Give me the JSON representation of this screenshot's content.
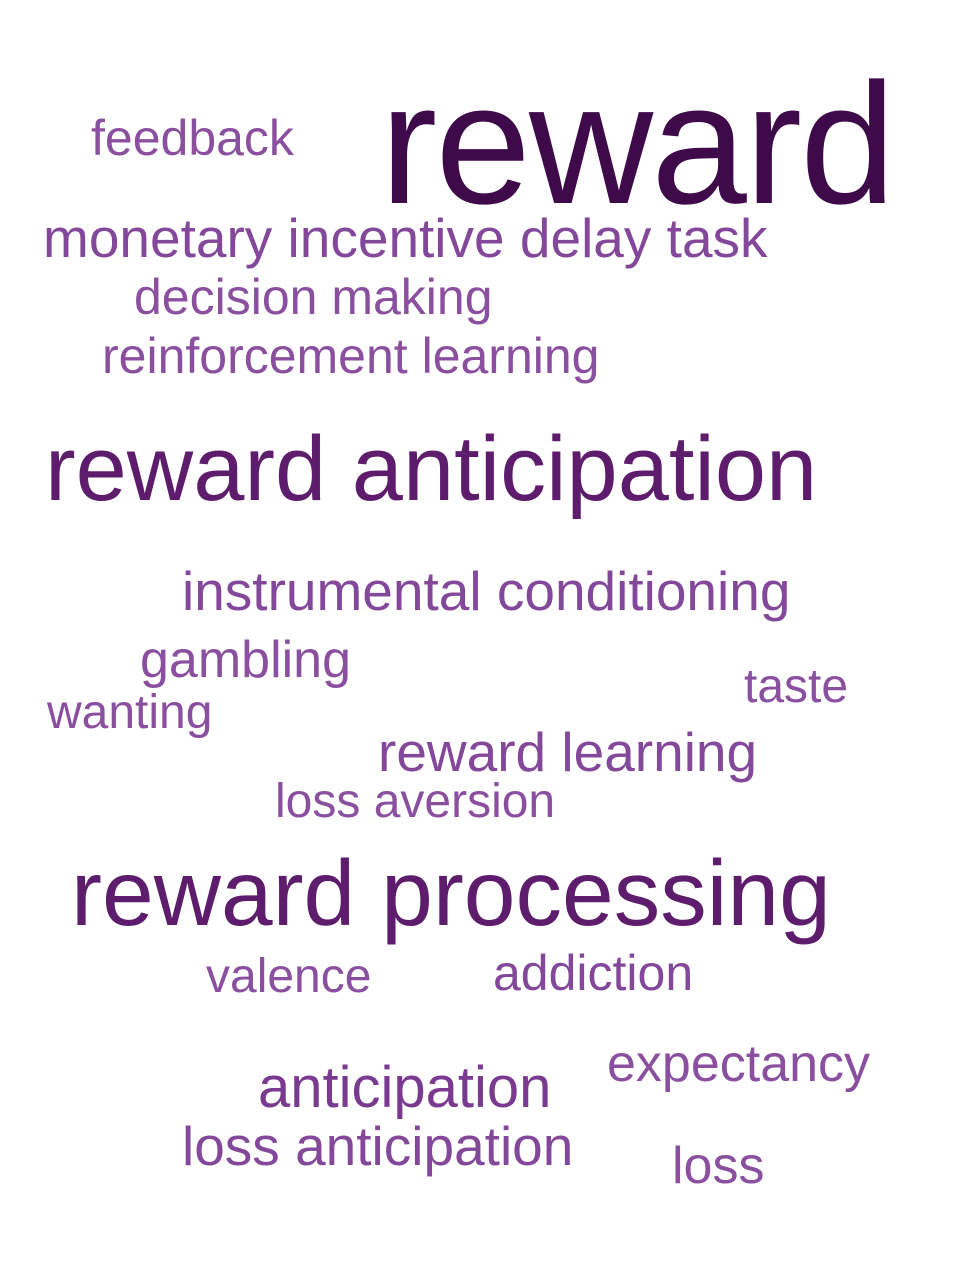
{
  "word_cloud": {
    "words": [
      {
        "id": "reward",
        "text": "reward",
        "color": "#3f0a4a",
        "weight": 1.0
      },
      {
        "id": "feedback",
        "text": "feedback",
        "color": "#8a4f9e",
        "weight": 0.35
      },
      {
        "id": "monetary-incentive-delay-task",
        "text": "monetary incentive delay task",
        "color": "#84489b",
        "weight": 0.45
      },
      {
        "id": "decision-making",
        "text": "decision making",
        "color": "#8a4f9e",
        "weight": 0.4
      },
      {
        "id": "reinforcement-learning",
        "text": "reinforcement learning",
        "color": "#8a4f9e",
        "weight": 0.4
      },
      {
        "id": "reward-anticipation",
        "text": "reward anticipation",
        "color": "#5e1d6c",
        "weight": 0.7
      },
      {
        "id": "instrumental-conditioning",
        "text": "instrumental conditioning",
        "color": "#84489b",
        "weight": 0.45
      },
      {
        "id": "gambling",
        "text": "gambling",
        "color": "#8a4f9e",
        "weight": 0.4
      },
      {
        "id": "taste",
        "text": "taste",
        "color": "#8a4f9e",
        "weight": 0.35
      },
      {
        "id": "wanting",
        "text": "wanting",
        "color": "#8a4f9e",
        "weight": 0.35
      },
      {
        "id": "reward-learning",
        "text": "reward learning",
        "color": "#84489b",
        "weight": 0.45
      },
      {
        "id": "loss-aversion",
        "text": "loss aversion",
        "color": "#8a4f9e",
        "weight": 0.35
      },
      {
        "id": "reward-processing",
        "text": "reward processing",
        "color": "#5e1d6c",
        "weight": 0.75
      },
      {
        "id": "valence",
        "text": "valence",
        "color": "#8a4f9e",
        "weight": 0.35
      },
      {
        "id": "addiction",
        "text": "addiction",
        "color": "#84489b",
        "weight": 0.4
      },
      {
        "id": "expectancy",
        "text": "expectancy",
        "color": "#8a4f9e",
        "weight": 0.4
      },
      {
        "id": "anticipation",
        "text": "anticipation",
        "color": "#7a3a90",
        "weight": 0.48
      },
      {
        "id": "loss-anticipation",
        "text": "loss anticipation",
        "color": "#84489b",
        "weight": 0.45
      },
      {
        "id": "loss",
        "text": "loss",
        "color": "#8a4f9e",
        "weight": 0.4
      }
    ]
  }
}
